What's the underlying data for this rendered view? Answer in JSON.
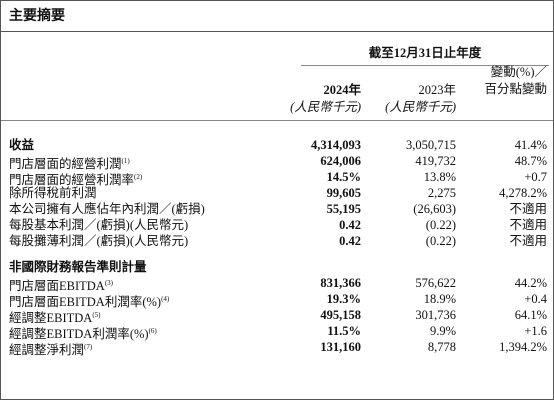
{
  "title": "主要摘要",
  "header": {
    "period": "截至12月31日止年度",
    "columns": [
      [
        "2024年",
        "(人民幣千元)"
      ],
      [
        "2023年",
        "(人民幣千元)"
      ],
      [
        "變動(%)／",
        "百分點變動"
      ]
    ]
  },
  "sections": [
    {
      "rows": [
        {
          "label": "收益",
          "cells": [
            "4,314,093",
            "3,050,715",
            "41.4%"
          ]
        },
        {
          "label": "門店層面的經營利潤",
          "note": "(1)",
          "cells": [
            "624,006",
            "419,732",
            "48.7%"
          ]
        },
        {
          "label": "門店層面的經營利潤率",
          "note": "(2)",
          "cells": [
            "14.5%",
            "13.8%",
            "+0.7"
          ]
        },
        {
          "label": "除所得稅前利潤",
          "cells": [
            "99,605",
            "2,275",
            "4,278.2%"
          ]
        },
        {
          "label": "本公司擁有人應佔年內利潤／(虧損)",
          "cells": [
            "55,195",
            "(26,603)",
            "不適用"
          ]
        },
        {
          "label": "每股基本利潤／(虧損)(人民幣元)",
          "cells": [
            "0.42",
            "(0.22)",
            "不適用"
          ]
        },
        {
          "label": "每股攤薄利潤／(虧損)(人民幣元)",
          "cells": [
            "0.42",
            "(0.22)",
            "不適用"
          ]
        }
      ]
    },
    {
      "heading": "非國際財務報告準則計量",
      "rows": [
        {
          "label": "門店層面EBITDA",
          "note": "(3)",
          "cells": [
            "831,366",
            "576,622",
            "44.2%"
          ]
        },
        {
          "label": "門店層面EBITDA利潤率(%)",
          "note": "(4)",
          "cells": [
            "19.3%",
            "18.9%",
            "+0.4"
          ]
        },
        {
          "label": "經調整EBITDA",
          "note": "(5)",
          "cells": [
            "495,158",
            "301,736",
            "64.1%"
          ]
        },
        {
          "label": "經調整EBITDA利潤率(%)",
          "note": "(6)",
          "cells": [
            "11.5%",
            "9.9%",
            "+1.6"
          ]
        },
        {
          "label": "經調整淨利潤",
          "note": "(7)",
          "cells": [
            "131,160",
            "8,778",
            "1,394.2%"
          ]
        }
      ]
    }
  ]
}
